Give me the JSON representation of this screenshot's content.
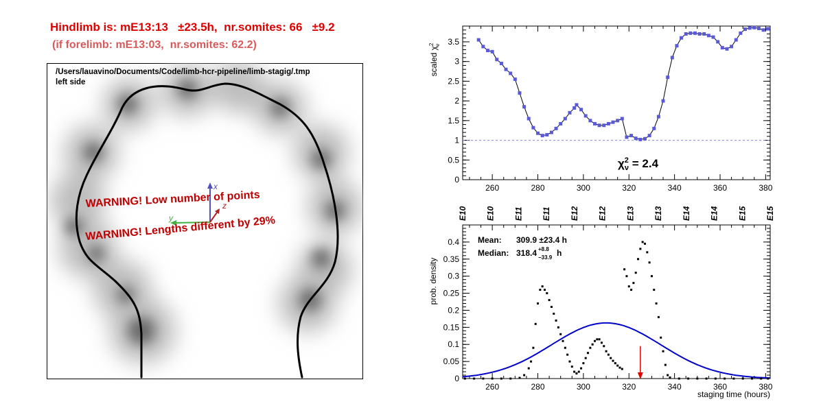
{
  "header": {
    "hindlimb_line": "Hindlimb is: mE13:13   ±23.5h,  nr.somites: 66   ±9.2",
    "forelimb_line": "(if forelimb: mE13:03,  nr.somites: 62.2)"
  },
  "limb_panel": {
    "path_line": "/Users/lauavino/Documents/Code/limb-hcr-pipeline/limb-stagig/.tmp",
    "side_label": "left side",
    "warning_1": "WARNING! Low number of points",
    "warning_2": "WARNING! Lengths different by 29%",
    "axis_x_label": "x",
    "axis_y_label": "y",
    "axis_z_label": "z",
    "colors": {
      "warning": "#c00000",
      "axis_x": "#5050c0",
      "axis_y": "#40b040",
      "axis_z": "#b02020"
    }
  },
  "chart_data": [
    {
      "type": "scatter",
      "ylabel": "scaled χ²ν",
      "xlim": [
        247,
        382
      ],
      "ylim": [
        0,
        3.9
      ],
      "x_ticks": [
        260,
        280,
        300,
        320,
        340,
        360,
        380
      ],
      "y_ticks": [
        0,
        0.5,
        1,
        1.5,
        2,
        2.5,
        3,
        3.5
      ],
      "reference_line_y": 1,
      "annotation": "χ²ν = 2.4",
      "marker_color": "#5a5ad8",
      "points": [
        [
          254,
          3.55
        ],
        [
          256,
          3.38
        ],
        [
          258,
          3.28
        ],
        [
          260,
          3.25
        ],
        [
          262,
          3.05
        ],
        [
          264,
          2.95
        ],
        [
          266,
          2.8
        ],
        [
          268,
          2.7
        ],
        [
          270,
          2.55
        ],
        [
          272,
          2.2
        ],
        [
          274,
          1.85
        ],
        [
          276,
          1.55
        ],
        [
          278,
          1.32
        ],
        [
          280,
          1.18
        ],
        [
          282,
          1.12
        ],
        [
          284,
          1.14
        ],
        [
          286,
          1.2
        ],
        [
          288,
          1.3
        ],
        [
          290,
          1.42
        ],
        [
          292,
          1.55
        ],
        [
          294,
          1.7
        ],
        [
          296,
          1.82
        ],
        [
          297,
          1.9
        ],
        [
          299,
          1.78
        ],
        [
          301,
          1.62
        ],
        [
          303,
          1.5
        ],
        [
          305,
          1.42
        ],
        [
          307,
          1.38
        ],
        [
          309,
          1.38
        ],
        [
          311,
          1.42
        ],
        [
          313,
          1.46
        ],
        [
          315,
          1.5
        ],
        [
          317,
          1.55
        ],
        [
          319,
          1.08
        ],
        [
          321,
          1.12
        ],
        [
          323,
          1.05
        ],
        [
          325,
          1.02
        ],
        [
          327,
          1.04
        ],
        [
          329,
          1.12
        ],
        [
          331,
          1.3
        ],
        [
          333,
          1.6
        ],
        [
          335,
          2.0
        ],
        [
          337,
          2.6
        ],
        [
          339,
          3.1
        ],
        [
          341,
          3.4
        ],
        [
          343,
          3.6
        ],
        [
          345,
          3.7
        ],
        [
          347,
          3.72
        ],
        [
          349,
          3.72
        ],
        [
          351,
          3.7
        ],
        [
          353,
          3.7
        ],
        [
          355,
          3.66
        ],
        [
          357,
          3.62
        ],
        [
          359,
          3.5
        ],
        [
          361,
          3.35
        ],
        [
          363,
          3.32
        ],
        [
          365,
          3.38
        ],
        [
          367,
          3.55
        ],
        [
          369,
          3.72
        ],
        [
          371,
          3.82
        ],
        [
          373,
          3.85
        ],
        [
          375,
          3.86
        ],
        [
          377,
          3.84
        ],
        [
          379,
          3.8
        ],
        [
          381,
          3.83
        ]
      ]
    },
    {
      "type": "scatter",
      "xlabel": "staging time (hours)",
      "ylabel": "prob. density",
      "xlim": [
        247,
        382
      ],
      "ylim": [
        0,
        0.45
      ],
      "x_ticks": [
        260,
        280,
        300,
        320,
        340,
        360,
        380
      ],
      "y_ticks": [
        0,
        0.05,
        0.1,
        0.15,
        0.2,
        0.25,
        0.3,
        0.35,
        0.4
      ],
      "top_axis_labels": [
        "E10",
        "E10",
        "E11",
        "E11",
        "E12",
        "E12",
        "E13",
        "E13",
        "E14",
        "E14",
        "E15",
        "E15"
      ],
      "stats": {
        "mean_label": "Mean:",
        "mean_value": "309.9 ±23.4 h",
        "median_label": "Median:",
        "median_value": "318.4",
        "median_plus": "+8.8",
        "median_minus": "−33.9",
        "median_unit": "h"
      },
      "gaussian": {
        "mean": 310,
        "sigma": 24,
        "peak": 0.163,
        "color": "#0000cc"
      },
      "arrow_x": 325,
      "arrow_color": "#e00000",
      "points": [
        [
          248,
          0
        ],
        [
          252,
          0
        ],
        [
          256,
          0
        ],
        [
          260,
          0
        ],
        [
          264,
          0
        ],
        [
          268,
          0
        ],
        [
          272,
          0.002
        ],
        [
          274,
          0.01
        ],
        [
          276,
          0.03
        ],
        [
          277,
          0.05
        ],
        [
          278,
          0.09
        ],
        [
          279,
          0.16
        ],
        [
          280,
          0.22
        ],
        [
          281,
          0.26
        ],
        [
          282,
          0.27
        ],
        [
          283,
          0.26
        ],
        [
          284,
          0.25
        ],
        [
          285,
          0.23
        ],
        [
          286,
          0.21
        ],
        [
          287,
          0.19
        ],
        [
          288,
          0.17
        ],
        [
          289,
          0.15
        ],
        [
          290,
          0.13
        ],
        [
          291,
          0.11
        ],
        [
          292,
          0.09
        ],
        [
          293,
          0.07
        ],
        [
          294,
          0.05
        ],
        [
          295,
          0.035
        ],
        [
          296,
          0.02
        ],
        [
          297,
          0.015
        ],
        [
          298,
          0.02
        ],
        [
          299,
          0.03
        ],
        [
          300,
          0.045
        ],
        [
          301,
          0.06
        ],
        [
          302,
          0.075
        ],
        [
          303,
          0.09
        ],
        [
          304,
          0.1
        ],
        [
          305,
          0.11
        ],
        [
          306,
          0.115
        ],
        [
          307,
          0.115
        ],
        [
          308,
          0.105
        ],
        [
          309,
          0.095
        ],
        [
          310,
          0.08
        ],
        [
          311,
          0.07
        ],
        [
          312,
          0.06
        ],
        [
          313,
          0.052
        ],
        [
          314,
          0.045
        ],
        [
          315,
          0.038
        ],
        [
          316,
          0.032
        ],
        [
          317,
          0.028
        ],
        [
          318,
          0.32
        ],
        [
          319,
          0.3
        ],
        [
          320,
          0.27
        ],
        [
          321,
          0.26
        ],
        [
          322,
          0.28
        ],
        [
          323,
          0.31
        ],
        [
          324,
          0.35
        ],
        [
          325,
          0.38
        ],
        [
          326,
          0.4
        ],
        [
          327,
          0.395
        ],
        [
          328,
          0.37
        ],
        [
          329,
          0.34
        ],
        [
          330,
          0.3
        ],
        [
          331,
          0.26
        ],
        [
          332,
          0.22
        ],
        [
          333,
          0.18
        ],
        [
          334,
          0.12
        ],
        [
          335,
          0.08
        ],
        [
          336,
          0.04
        ],
        [
          337,
          0.01
        ],
        [
          338,
          0.003
        ],
        [
          342,
          0
        ],
        [
          346,
          0
        ],
        [
          350,
          0
        ],
        [
          354,
          0
        ],
        [
          358,
          0
        ],
        [
          362,
          0
        ],
        [
          366,
          0
        ],
        [
          370,
          0
        ],
        [
          374,
          0
        ],
        [
          378,
          0
        ],
        [
          381,
          0
        ]
      ]
    }
  ]
}
